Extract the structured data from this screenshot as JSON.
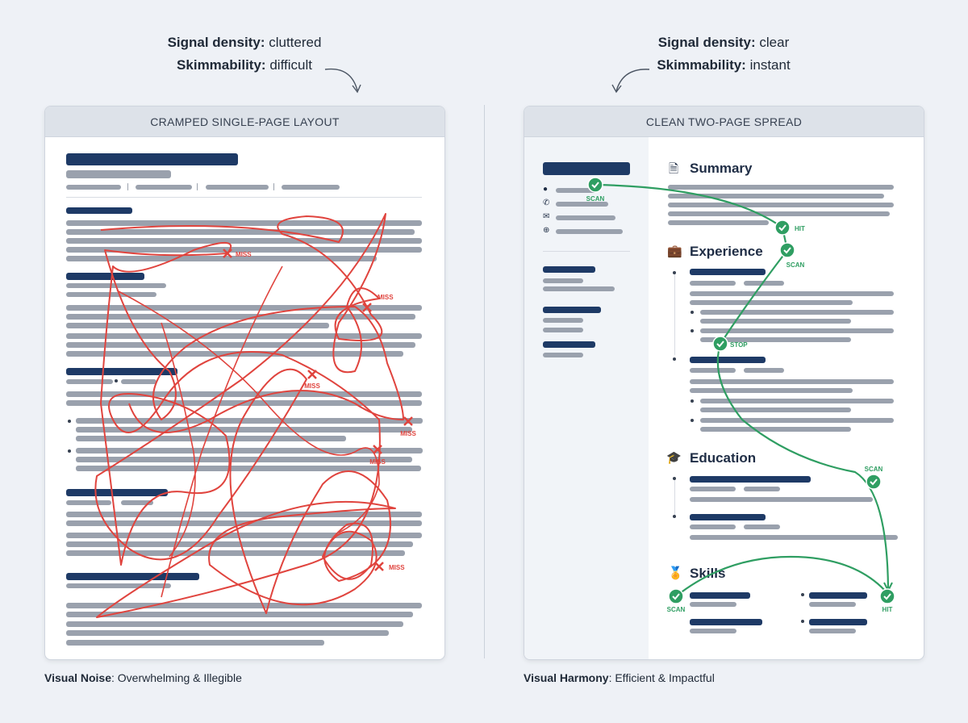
{
  "left": {
    "caption_density_label": "Signal density:",
    "caption_density_value": "cluttered",
    "caption_skim_label": "Skimmability:",
    "caption_skim_value": "difficult",
    "card_title": "CRAMPED SINGLE-PAGE LAYOUT",
    "miss_label": "MISS",
    "footer_label": "Visual Noise",
    "footer_value": ": Overwhelming & Illegible"
  },
  "right": {
    "caption_density_label": "Signal density:",
    "caption_density_value": "clear",
    "caption_skim_label": "Skimmability:",
    "caption_skim_value": "instant",
    "card_title": "CLEAN TWO-PAGE SPREAD",
    "sections": {
      "summary": "Summary",
      "experience": "Experience",
      "education": "Education",
      "skills": "Skills"
    },
    "markers": {
      "scan": "SCAN",
      "hit": "HIT",
      "stop": "STOP"
    },
    "footer_label": "Visual Harmony",
    "footer_value": ": Efficient & Impactful"
  },
  "colors": {
    "heading_bar": "#1e3a66",
    "text_bar": "#9aa1ad",
    "scribble": "#e0443e",
    "eye_path": "#2f9e62",
    "background": "#eef1f6"
  }
}
